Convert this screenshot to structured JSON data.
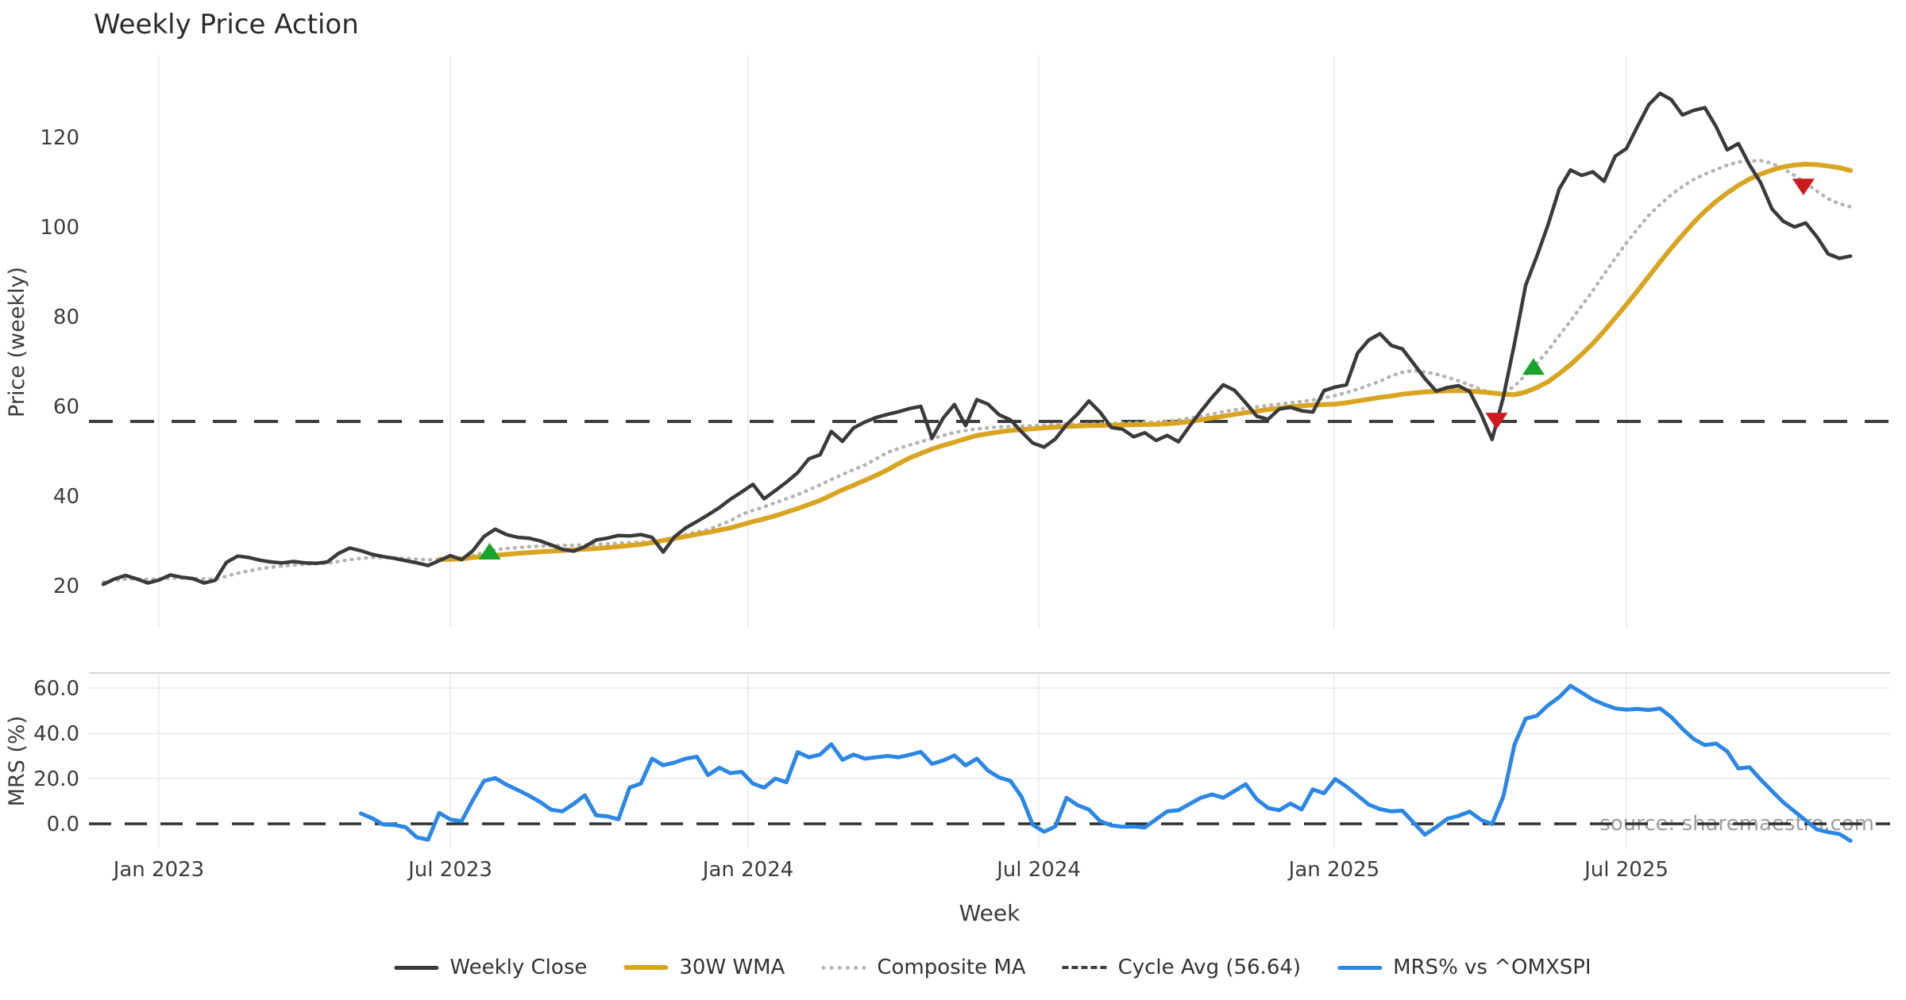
{
  "title": "Weekly Price Action",
  "watermark": "source: sharemaestro.com",
  "xlabel": "Week",
  "colors": {
    "close": "#3a3a3a",
    "wma": "#d9a521",
    "composite": "#b4b4b4",
    "cycle": "#3d3d3d",
    "mrs": "#2b87e5",
    "buy": "#1aa32b",
    "sell": "#cc1b1e",
    "grid": "#eceef2",
    "grid_h": "#ededed",
    "spine": "#d5d5d8",
    "tick_text": "#3c3c3c",
    "title_text": "#2b2b2b",
    "watermark_text": "#828282"
  },
  "legend": [
    {
      "label": "Weekly Close",
      "style": "solid",
      "color": "#3a3a3a"
    },
    {
      "label": "30W WMA",
      "style": "thick",
      "color": "#d9a521"
    },
    {
      "label": "Composite MA",
      "style": "dotted",
      "color": "#b4b4b4"
    },
    {
      "label": "Cycle Avg (56.64)",
      "style": "dashed",
      "color": "#3d3d3d"
    },
    {
      "label": "MRS% vs ^OMXSPI",
      "style": "solid",
      "color": "#2b87e5"
    }
  ],
  "chart_data": [
    {
      "type": "line",
      "panel": "price",
      "ylabel": "Price (weekly)",
      "yticks": [
        20,
        40,
        60,
        80,
        100,
        120
      ],
      "ylim": [
        10,
        138
      ],
      "grid": "vertical-only",
      "xtick_labels": [
        "Jan 2023",
        "Jul 2023",
        "Jan 2024",
        "Jul 2024",
        "Jan 2025",
        "Jul 2025"
      ],
      "xtick_weeks": [
        4.96,
        30.99,
        57.58,
        83.53,
        109.9,
        136.0
      ],
      "cycle_avg": 56.64,
      "series": [
        {
          "name": "Weekly Close",
          "start_week": 0,
          "values": [
            20.3,
            21.5,
            22.3,
            21.5,
            20.6,
            21.3,
            22.4,
            21.9,
            21.6,
            20.6,
            21.2,
            25.2,
            26.6,
            26.3,
            25.7,
            25.3,
            25.1,
            25.4,
            25.1,
            25.0,
            25.3,
            27.2,
            28.4,
            27.8,
            27.0,
            26.5,
            26.1,
            25.6,
            25.1,
            24.5,
            25.6,
            26.7,
            25.8,
            27.8,
            31.0,
            32.6,
            31.4,
            30.8,
            30.6,
            30.0,
            29.1,
            28.1,
            27.7,
            28.7,
            30.2,
            30.6,
            31.2,
            31.1,
            31.4,
            30.8,
            27.5,
            30.9,
            32.9,
            34.3,
            35.8,
            37.4,
            39.3,
            40.9,
            42.6,
            39.4,
            41.2,
            43.1,
            45.2,
            48.3,
            49.2,
            54.4,
            52.2,
            55.2,
            56.5,
            57.5,
            58.2,
            58.8,
            59.5,
            60.0,
            52.9,
            57.4,
            60.4,
            55.7,
            61.5,
            60.5,
            58.1,
            57.0,
            54.3,
            51.8,
            50.9,
            52.7,
            55.9,
            58.3,
            61.2,
            58.7,
            55.3,
            54.9,
            53.2,
            54.1,
            52.4,
            53.5,
            52.1,
            55.6,
            58.9,
            62.0,
            64.8,
            63.6,
            60.8,
            57.8,
            57.1,
            59.4,
            59.8,
            59.0,
            58.7,
            63.5,
            64.3,
            64.8,
            71.9,
            74.8,
            76.2,
            73.6,
            72.8,
            69.5,
            66.2,
            63.4,
            64.2,
            64.6,
            63.3,
            58.4,
            52.6,
            62.0,
            74.0,
            87.0,
            93.5,
            100.5,
            108.5,
            112.7,
            111.5,
            112.3,
            110.2,
            115.8,
            117.5,
            122.5,
            127.3,
            129.8,
            128.4,
            125.0,
            126.0,
            126.6,
            122.4,
            117.2,
            118.6,
            113.8,
            109.8,
            104.0,
            101.3,
            100.0,
            100.9,
            97.8,
            94.0,
            93.0,
            93.5
          ]
        },
        {
          "name": "30W WMA",
          "start_week": 30,
          "values": [
            25.9,
            25.9,
            26.0,
            26.3,
            26.5,
            26.8,
            27.0,
            27.2,
            27.4,
            27.55,
            27.7,
            27.85,
            28.0,
            28.15,
            28.3,
            28.5,
            28.7,
            28.95,
            29.2,
            29.6,
            30.1,
            30.55,
            31.0,
            31.45,
            31.9,
            32.4,
            32.9,
            33.6,
            34.3,
            34.9,
            35.6,
            36.4,
            37.2,
            38.1,
            39.0,
            40.2,
            41.4,
            42.4,
            43.5,
            44.6,
            45.8,
            47.2,
            48.5,
            49.5,
            50.5,
            51.3,
            52.0,
            52.8,
            53.5,
            53.9,
            54.3,
            54.6,
            54.8,
            55.0,
            55.2,
            55.35,
            55.5,
            55.6,
            55.7,
            55.75,
            55.8,
            55.85,
            55.9,
            55.95,
            56.0,
            56.1,
            56.3,
            56.6,
            57.0,
            57.4,
            57.8,
            58.2,
            58.6,
            58.9,
            59.3,
            59.6,
            59.9,
            60.1,
            60.3,
            60.4,
            60.5,
            60.8,
            61.2,
            61.6,
            62.0,
            62.3,
            62.7,
            63.0,
            63.2,
            63.35,
            63.45,
            63.5,
            63.4,
            63.2,
            63.0,
            62.7,
            62.6,
            63.2,
            64.2,
            65.5,
            67.3,
            69.3,
            71.6,
            74.0,
            76.8,
            79.7,
            82.7,
            85.8,
            89.0,
            92.2,
            95.3,
            98.2,
            101.0,
            103.5,
            105.7,
            107.6,
            109.3,
            110.7,
            111.8,
            112.7,
            113.4,
            113.8,
            114.0,
            113.9,
            113.6,
            113.2,
            112.6
          ]
        },
        {
          "name": "Composite MA",
          "start_week": 0,
          "values": [
            20.8,
            21.2,
            21.5,
            21.5,
            21.4,
            21.5,
            21.7,
            21.7,
            21.6,
            21.5,
            21.5,
            22.1,
            22.8,
            23.3,
            23.8,
            24.1,
            24.4,
            24.6,
            24.8,
            24.9,
            25.0,
            25.4,
            25.8,
            26.1,
            26.3,
            26.3,
            26.2,
            26.1,
            25.9,
            25.8,
            25.8,
            26.0,
            26.3,
            26.8,
            27.4,
            28.0,
            28.3,
            28.5,
            28.7,
            28.8,
            28.9,
            29.0,
            29.0,
            29.1,
            29.2,
            29.35,
            29.5,
            29.6,
            29.7,
            29.85,
            30.0,
            30.7,
            31.4,
            32.0,
            32.5,
            33.5,
            34.5,
            35.9,
            36.8,
            37.6,
            38.5,
            39.4,
            40.3,
            41.4,
            42.5,
            43.7,
            44.8,
            45.9,
            46.9,
            48.3,
            49.7,
            50.6,
            51.4,
            52.1,
            52.8,
            53.5,
            54.2,
            54.6,
            55.0,
            55.2,
            55.4,
            55.5,
            55.6,
            55.7,
            55.8,
            55.95,
            56.1,
            56.0,
            56.0,
            56.1,
            56.2,
            56.25,
            56.3,
            56.4,
            56.5,
            56.75,
            57.0,
            57.4,
            57.8,
            58.3,
            58.8,
            59.2,
            59.6,
            59.9,
            60.2,
            60.5,
            60.8,
            61.1,
            61.4,
            61.9,
            62.4,
            63.1,
            63.8,
            64.7,
            65.6,
            66.8,
            67.6,
            68.0,
            67.7,
            67.2,
            66.5,
            65.7,
            64.8,
            63.8,
            62.8,
            63.0,
            64.5,
            67.0,
            69.6,
            72.5,
            75.8,
            79.0,
            82.4,
            85.8,
            89.5,
            93.0,
            96.5,
            99.6,
            102.6,
            105.0,
            107.2,
            109.0,
            110.6,
            111.8,
            112.8,
            113.8,
            114.5,
            114.7,
            114.8,
            114.2,
            113.0,
            111.5,
            109.8,
            108.0,
            106.3,
            105.2,
            104.5
          ]
        }
      ],
      "signals": {
        "buy": [
          {
            "week": 34.5,
            "value": 27.6
          },
          {
            "week": 127.7,
            "value": 68.8
          }
        ],
        "sell": [
          {
            "week": 124.4,
            "value": 56.8
          },
          {
            "week": 151.8,
            "value": 109.0
          }
        ]
      }
    },
    {
      "type": "line",
      "panel": "mrs",
      "ylabel": "MRS (%)",
      "yticks": [
        0.0,
        20.0,
        40.0,
        60.0
      ],
      "ytick_labels": [
        "0.0",
        "20.0",
        "40.0",
        "60.0"
      ],
      "ylim": [
        -11,
        67
      ],
      "zero_line": 0.0,
      "series": [
        {
          "name": "MRS% vs ^OMXSPI",
          "start_week": 23,
          "values": [
            4.6,
            2.5,
            -0.3,
            -0.5,
            -1.5,
            -6.0,
            -7.0,
            4.8,
            1.9,
            1.2,
            10.5,
            19.0,
            20.2,
            17.3,
            15.0,
            12.5,
            9.7,
            6.2,
            5.5,
            8.8,
            12.6,
            3.8,
            3.3,
            2.0,
            16.0,
            17.8,
            28.8,
            25.9,
            27.1,
            28.8,
            29.7,
            21.5,
            24.8,
            22.4,
            23.0,
            17.8,
            16.0,
            20.0,
            18.4,
            31.7,
            29.4,
            30.6,
            35.2,
            28.3,
            30.6,
            28.8,
            29.4,
            30.0,
            29.4,
            30.5,
            31.8,
            26.5,
            28.0,
            30.2,
            25.8,
            28.8,
            23.5,
            20.5,
            19.0,
            11.9,
            -0.5,
            -3.5,
            -1.2,
            11.5,
            8.2,
            6.3,
            1.2,
            -0.7,
            -1.3,
            -1.2,
            -1.6,
            2.0,
            5.5,
            6.0,
            8.8,
            11.5,
            13.0,
            11.5,
            14.5,
            17.5,
            10.8,
            7.0,
            6.0,
            9.0,
            6.3,
            15.2,
            13.5,
            19.8,
            16.5,
            12.5,
            8.5,
            6.5,
            5.5,
            5.8,
            0.5,
            -4.8,
            -1.5,
            2.2,
            3.5,
            5.4,
            1.8,
            -0.1,
            12.0,
            35.0,
            46.5,
            47.8,
            52.4,
            56.0,
            61.0,
            58.0,
            54.9,
            52.8,
            51.0,
            50.5,
            50.8,
            50.3,
            51.0,
            47.2,
            42.0,
            37.5,
            34.8,
            35.5,
            32.0,
            24.5,
            25.0,
            19.5,
            14.5,
            9.5,
            5.5,
            1.5,
            -2.5,
            -3.7,
            -4.5,
            -7.5
          ]
        }
      ]
    }
  ]
}
